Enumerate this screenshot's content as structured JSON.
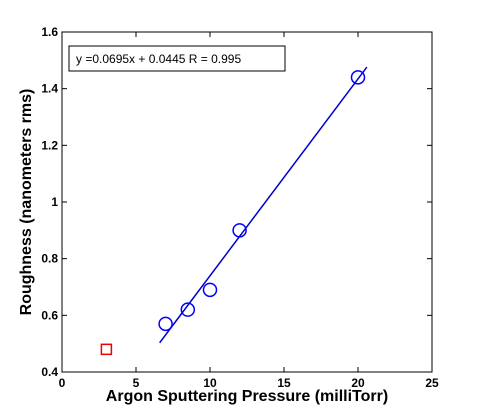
{
  "chart_data": {
    "type": "scatter",
    "title": "",
    "xlabel": "Argon Sputtering Pressure (milliTorr)",
    "ylabel": "Roughness (nanometers rms)",
    "xlim": [
      0,
      25
    ],
    "ylim": [
      0.4,
      1.6
    ],
    "xticks": [
      0,
      5,
      10,
      15,
      20,
      25
    ],
    "yticks": [
      0.4,
      0.6,
      0.8,
      1.0,
      1.2,
      1.4,
      1.6
    ],
    "xtick_labels": [
      "0",
      "5",
      "10",
      "15",
      "20",
      "25"
    ],
    "ytick_labels": [
      "0.4",
      "0.6",
      "0.8",
      "1",
      "1.2",
      "1.4",
      "1.6"
    ],
    "grid": false,
    "annotation": "y =0.0695x + 0.0445 R = 0.995",
    "series": [
      {
        "marker": "circle",
        "color": "#0000ff",
        "x": [
          7,
          8.5,
          10,
          12,
          20
        ],
        "y": [
          0.57,
          0.62,
          0.69,
          0.9,
          1.44
        ]
      },
      {
        "marker": "square",
        "color": "#ee0000",
        "x": [
          3
        ],
        "y": [
          0.48
        ]
      }
    ],
    "fit_line": {
      "color": "#0000cc",
      "slope": 0.0695,
      "intercept": 0.0445,
      "x_start": 6.6,
      "x_end": 20.6
    }
  }
}
